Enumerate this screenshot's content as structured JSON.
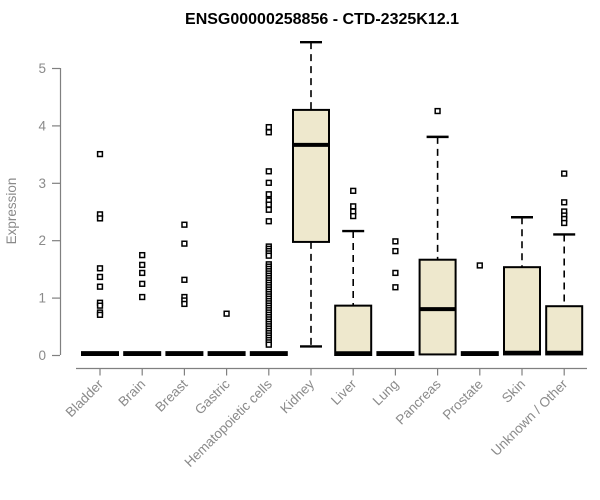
{
  "chart_data": {
    "type": "boxplot",
    "title": "ENSG00000258856 - CTD-2325K12.1",
    "ylabel": "Expression",
    "xlabel": "",
    "ylim": [
      0,
      5.5
    ],
    "yticks": [
      0,
      1,
      2,
      3,
      4,
      5
    ],
    "grid": false,
    "legend": false,
    "categories": [
      "Bladder",
      "Brain",
      "Breast",
      "Gastric",
      "Hematopoietic cells",
      "Kidney",
      "Liver",
      "Lung",
      "Pancreas",
      "Prostate",
      "Skin",
      "Unknown / Other"
    ],
    "series": [
      {
        "name": "Bladder",
        "whislo": 0,
        "q1": 0,
        "med": 0.02,
        "q3": 0.05,
        "whishi": 0.06,
        "outliers": [
          3.5,
          2.45,
          2.38,
          1.51,
          1.36,
          1.19,
          0.91,
          0.86,
          0.74,
          0.7
        ]
      },
      {
        "name": "Brain",
        "whislo": 0,
        "q1": 0,
        "med": 0.02,
        "q3": 0.05,
        "whishi": 0.06,
        "outliers": [
          1.74,
          1.57,
          1.43,
          1.24,
          1.01
        ]
      },
      {
        "name": "Breast",
        "whislo": 0,
        "q1": 0,
        "med": 0.02,
        "q3": 0.05,
        "whishi": 0.06,
        "outliers": [
          2.27,
          1.94,
          1.31,
          1.01,
          0.95,
          0.89
        ]
      },
      {
        "name": "Gastric",
        "whislo": 0,
        "q1": 0,
        "med": 0.02,
        "q3": 0.05,
        "whishi": 0.06,
        "outliers": [
          0.72
        ]
      },
      {
        "name": "Hematopoietic cells",
        "whislo": 0,
        "q1": 0,
        "med": 0.02,
        "q3": 0.05,
        "whishi": 0.06,
        "outliers": [
          3.97,
          3.88,
          3.2,
          3.0,
          2.8,
          2.69,
          2.62,
          2.53,
          2.33,
          1.89,
          1.85,
          1.81,
          1.77,
          1.73,
          1.58,
          1.54,
          1.5,
          1.46,
          1.42,
          1.38,
          1.34,
          1.3,
          1.26,
          1.22,
          1.18,
          1.14,
          1.1,
          1.06,
          1.02,
          0.98,
          0.94,
          0.9,
          0.86,
          0.82,
          0.78,
          0.74,
          0.7,
          0.66,
          0.62,
          0.58,
          0.54,
          0.5,
          0.46,
          0.42,
          0.38,
          0.34,
          0.3,
          0.26,
          0.22,
          0.18
        ]
      },
      {
        "name": "Kidney",
        "whislo": 0.15,
        "q1": 1.97,
        "med": 3.66,
        "q3": 4.27,
        "whishi": 5.45,
        "outliers": []
      },
      {
        "name": "Liver",
        "whislo": 0,
        "q1": 0,
        "med": 0.03,
        "q3": 0.86,
        "whishi": 2.16,
        "outliers": [
          2.86,
          2.59,
          2.5,
          2.42
        ]
      },
      {
        "name": "Lung",
        "whislo": 0,
        "q1": 0,
        "med": 0.02,
        "q3": 0.05,
        "whishi": 0.06,
        "outliers": [
          1.98,
          1.81,
          1.43,
          1.18
        ]
      },
      {
        "name": "Pancreas",
        "whislo": 0,
        "q1": 0.01,
        "med": 0.8,
        "q3": 1.66,
        "whishi": 3.8,
        "outliers": [
          4.25
        ]
      },
      {
        "name": "Prostate",
        "whislo": 0,
        "q1": 0,
        "med": 0.02,
        "q3": 0.05,
        "whishi": 0.06,
        "outliers": [
          1.56
        ]
      },
      {
        "name": "Skin",
        "whislo": 0,
        "q1": 0.01,
        "med": 0.04,
        "q3": 1.53,
        "whishi": 2.4,
        "outliers": []
      },
      {
        "name": "Unknown / Other",
        "whislo": 0,
        "q1": 0.01,
        "med": 0.04,
        "q3": 0.85,
        "whishi": 2.1,
        "outliers": [
          3.16,
          2.66,
          2.5,
          2.43,
          2.37,
          2.3
        ]
      }
    ]
  },
  "colors": {
    "background": "#ffffff",
    "box_fill": "#EEE8CD",
    "box_stroke": "#000000",
    "median": "#000000",
    "whisker": "#000000",
    "outlier_stroke": "#000000",
    "outlier_fill": "#ffffff",
    "axis_line": "#808080",
    "axis_text": "#8a8a8a",
    "title_color": "#000000"
  }
}
